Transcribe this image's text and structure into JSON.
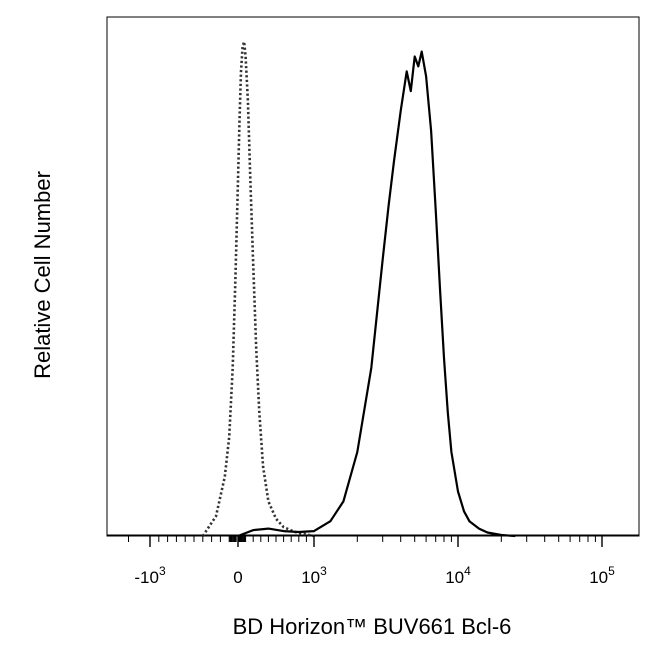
{
  "chart_data": {
    "type": "area",
    "xlabel": "BD Horizon™ BUV661 Bcl-6",
    "ylabel": "Relative Cell Number",
    "x_scale": "biexponential",
    "xlim": [
      -3000,
      200000
    ],
    "ylim": [
      0,
      1.05
    ],
    "grid": false,
    "legend": "none",
    "x_tick_labels": [
      {
        "value": -1000,
        "base": "-10",
        "exp": "3"
      },
      {
        "value": 0,
        "base": "0",
        "exp": ""
      },
      {
        "value": 1000,
        "base": "10",
        "exp": "3"
      },
      {
        "value": 10000,
        "base": "10",
        "exp": "4"
      },
      {
        "value": 100000,
        "base": "10",
        "exp": "5"
      }
    ],
    "series": [
      {
        "line_style": "dotted",
        "color": "#333333",
        "x": [
          -400,
          -250,
          -150,
          -100,
          -60,
          -30,
          0,
          20,
          40,
          60,
          80,
          100,
          130,
          160,
          200,
          240,
          280,
          330,
          400,
          500,
          600,
          750,
          1000
        ],
        "y": [
          0.0,
          0.04,
          0.12,
          0.2,
          0.34,
          0.52,
          0.72,
          0.84,
          0.94,
          0.99,
          1.0,
          0.97,
          0.88,
          0.73,
          0.55,
          0.38,
          0.25,
          0.14,
          0.07,
          0.035,
          0.018,
          0.008,
          0.0
        ]
      },
      {
        "line_style": "solid",
        "color": "#000000",
        "x": [
          0,
          200,
          400,
          600,
          800,
          1000,
          1300,
          1600,
          2000,
          2500,
          3000,
          3300,
          3600,
          4000,
          4400,
          4700,
          5000,
          5300,
          5600,
          6000,
          6500,
          7000,
          7500,
          8000,
          8500,
          9000,
          10000,
          11000,
          12000,
          14000,
          16000,
          20000,
          25000
        ],
        "y": [
          0.0,
          0.012,
          0.015,
          0.01,
          0.008,
          0.01,
          0.03,
          0.07,
          0.17,
          0.34,
          0.56,
          0.67,
          0.76,
          0.86,
          0.94,
          0.9,
          0.97,
          0.95,
          0.98,
          0.93,
          0.82,
          0.66,
          0.5,
          0.36,
          0.25,
          0.17,
          0.09,
          0.05,
          0.03,
          0.015,
          0.007,
          0.002,
          0.0
        ]
      }
    ]
  }
}
